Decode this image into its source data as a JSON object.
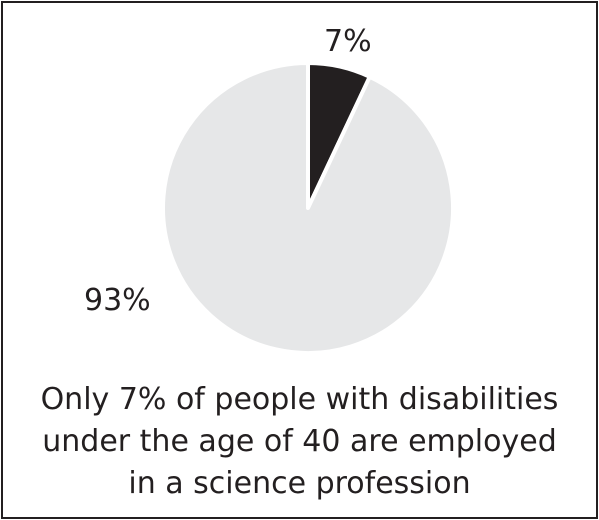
{
  "chart_data": {
    "type": "pie",
    "slices": [
      {
        "label": "7%",
        "value": 7,
        "color": "#231f20"
      },
      {
        "label": "93%",
        "value": 93,
        "color": "#e6e7e8"
      }
    ],
    "caption_lines": [
      "Only 7% of people with disabilities",
      "under the age of 40 are employed",
      "in a science profession"
    ]
  }
}
